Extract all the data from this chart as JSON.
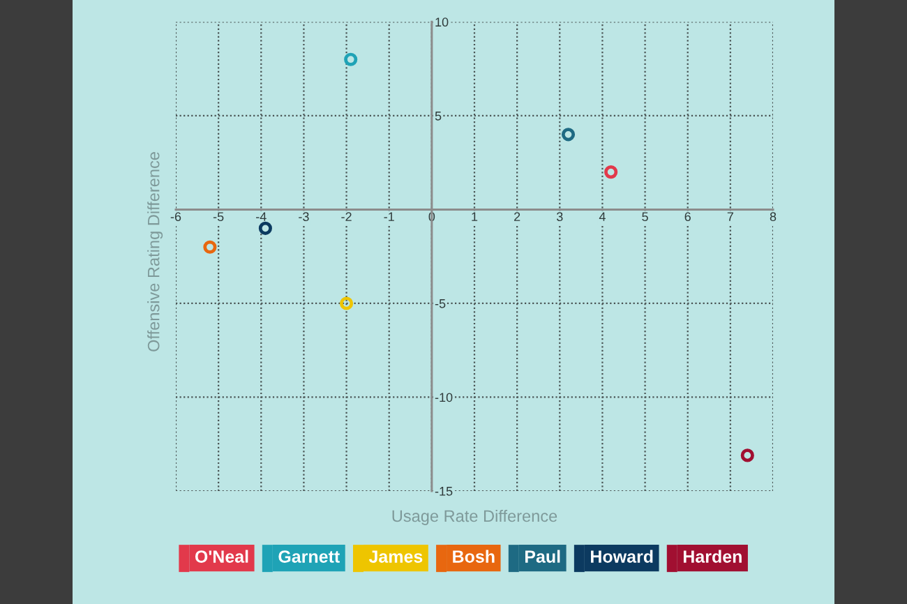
{
  "chart_data": {
    "type": "scatter",
    "xlabel": "Usage Rate Difference",
    "ylabel": "Offensive Rating Difference",
    "xlim": [
      -6,
      8
    ],
    "xticks": [
      -6,
      -5,
      -4,
      -3,
      -2,
      -1,
      0,
      1,
      2,
      3,
      4,
      5,
      6,
      7,
      8
    ],
    "ylim": [
      -15,
      10
    ],
    "yticks": [
      -15,
      -10,
      -5,
      {
        "value": 0,
        "label": null
      },
      5,
      10
    ],
    "grid": true,
    "legend": "bottom",
    "marker": "circle",
    "series": [
      {
        "name": "O'Neal",
        "color": "#e2394b",
        "x": [
          4.2
        ],
        "values": [
          2.0
        ]
      },
      {
        "name": "Garnett",
        "color": "#1fa3b6",
        "x": [
          -1.9
        ],
        "values": [
          8.0
        ]
      },
      {
        "name": "James",
        "color": "#eec500",
        "x": [
          -2.0
        ],
        "values": [
          -5.0
        ]
      },
      {
        "name": "Bosh",
        "color": "#e8670f",
        "x": [
          -5.2
        ],
        "values": [
          -2.0
        ]
      },
      {
        "name": "Paul",
        "color": "#1e6a83",
        "x": [
          3.2
        ],
        "values": [
          4.0
        ]
      },
      {
        "name": "Howard",
        "color": "#0c3a60",
        "x": [
          -3.9
        ],
        "values": [
          -1.0
        ]
      },
      {
        "name": "Harden",
        "color": "#a10f31",
        "x": [
          7.4
        ],
        "values": [
          -13.1
        ]
      }
    ]
  }
}
